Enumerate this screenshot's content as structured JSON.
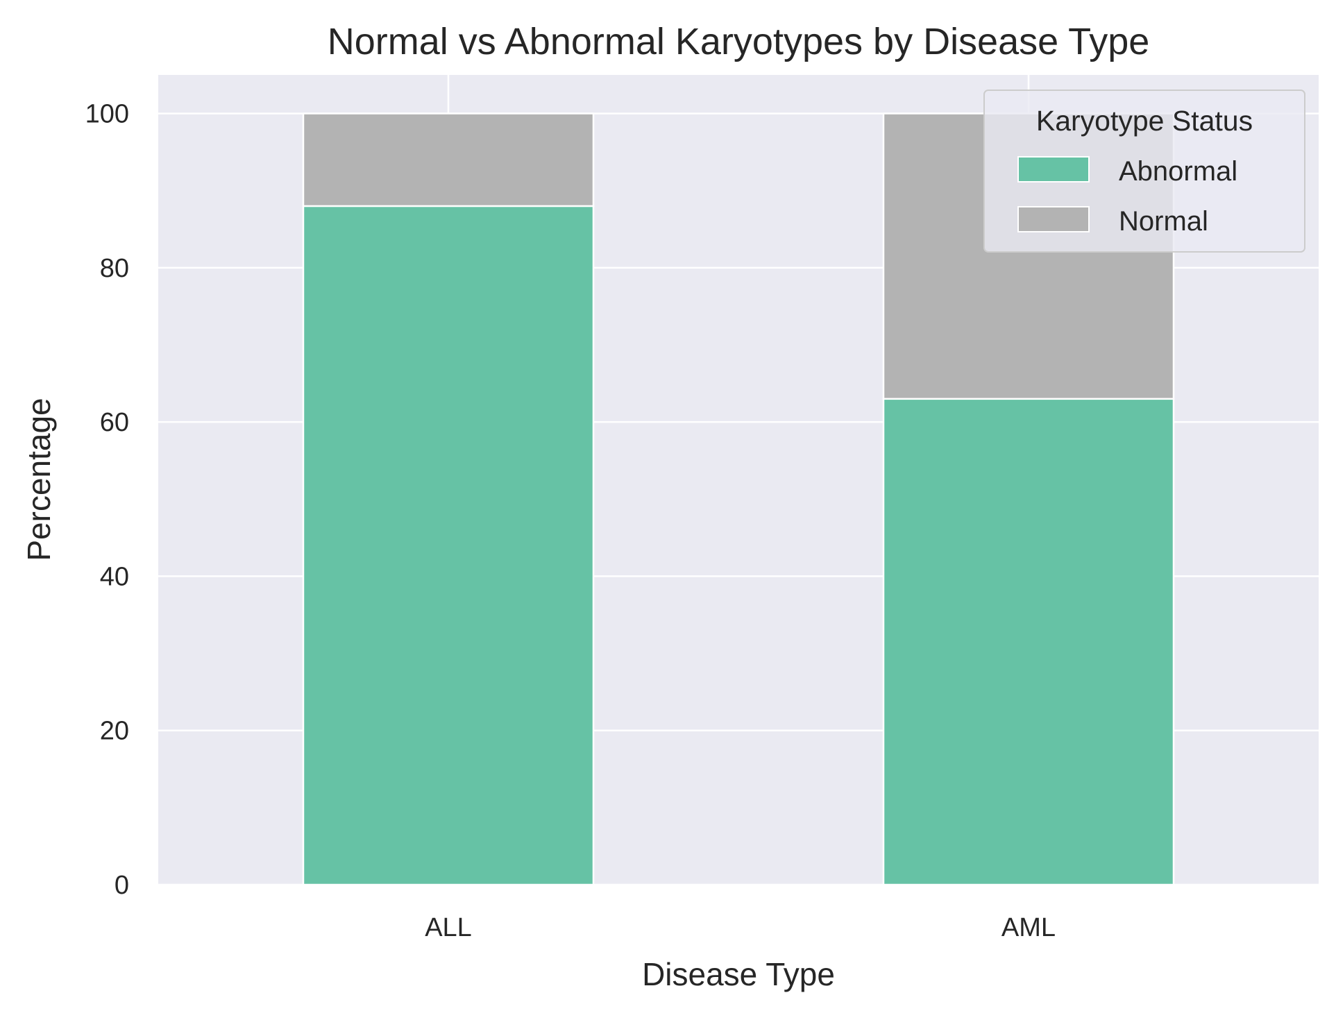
{
  "chart_data": {
    "type": "bar",
    "stacked": true,
    "title": "Normal vs Abnormal Karyotypes by Disease Type",
    "xlabel": "Disease Type",
    "ylabel": "Percentage",
    "categories": [
      "ALL",
      "AML"
    ],
    "series": [
      {
        "name": "Abnormal",
        "values": [
          88,
          63
        ],
        "color": "#66c2a5"
      },
      {
        "name": "Normal",
        "values": [
          12,
          37
        ],
        "color": "#b3b3b3"
      }
    ],
    "ylim": [
      0,
      105
    ],
    "yticks": [
      0,
      20,
      40,
      60,
      80,
      100
    ],
    "grid": true,
    "legend": {
      "title": "Karyotype Status",
      "position": "top-right"
    },
    "background": "#eaeaf2",
    "grid_color": "#ffffff"
  }
}
